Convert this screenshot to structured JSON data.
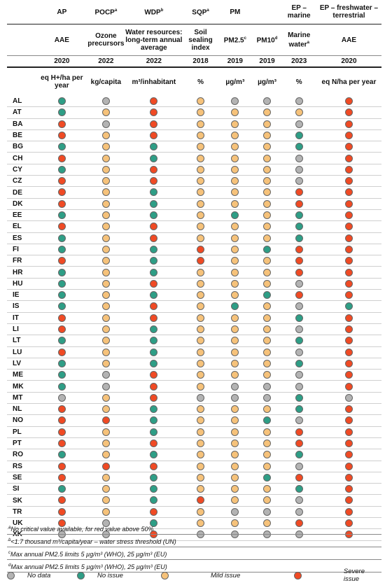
{
  "columns": [
    {
      "id": "ap",
      "group": "AP",
      "group_sup": "",
      "sub": "AAE",
      "sub_sup": "",
      "year": "2020",
      "unit": "eq H+/ha per year"
    },
    {
      "id": "pocp",
      "group": "POCP",
      "group_sup": "a",
      "sub": "Ozone precursors",
      "sub_sup": "",
      "year": "2022",
      "unit": "kg/capita"
    },
    {
      "id": "wdp",
      "group": "WDP",
      "group_sup": "b",
      "sub": "Water resources: long-term annual average",
      "sub_sup": "",
      "year": "2022",
      "unit": "m³/inhabitant"
    },
    {
      "id": "sqp",
      "group": "SQP",
      "group_sup": "a",
      "sub": "Soil sealing index",
      "sub_sup": "",
      "year": "2018",
      "unit": "%"
    },
    {
      "id": "pm25",
      "group": "PM",
      "group_sup": "",
      "sub": "PM2.5",
      "sub_sup": "c",
      "year": "2019",
      "unit": "µg/m³"
    },
    {
      "id": "pm10",
      "group": "",
      "group_sup": "",
      "sub": "PM10",
      "sub_sup": "d",
      "year": "2019",
      "unit": "µg/m³"
    },
    {
      "id": "epm",
      "group": "EP – marine",
      "group_sup": "",
      "sub": "Marine water",
      "sub_sup": "a",
      "year": "2023",
      "unit": "%"
    },
    {
      "id": "ept",
      "group": "EP – freshwater – terrestrial",
      "group_sup": "",
      "sub": "AAE",
      "sub_sup": "",
      "year": "2020",
      "unit": "eq N/ha per year"
    }
  ],
  "colors": {
    "n": "#b3b3b3",
    "g": "#2e9e86",
    "y": "#f6c27a",
    "r": "#f04a24"
  },
  "rows": [
    {
      "code": "AL",
      "s": "gnrynnnr"
    },
    {
      "code": "AT",
      "s": "gyryyyyr"
    },
    {
      "code": "BA",
      "s": "rnryyynr"
    },
    {
      "code": "BE",
      "s": "ryryyygr"
    },
    {
      "code": "BG",
      "s": "gygyyygr"
    },
    {
      "code": "CH",
      "s": "rygyyynr"
    },
    {
      "code": "CY",
      "s": "gyryyynr"
    },
    {
      "code": "CZ",
      "s": "ryryyynr"
    },
    {
      "code": "DE",
      "s": "rygyyyrr"
    },
    {
      "code": "DK",
      "s": "rygyyyrr"
    },
    {
      "code": "EE",
      "s": "gygygygr"
    },
    {
      "code": "EL",
      "s": "ryryyygr"
    },
    {
      "code": "ES",
      "s": "gyryyygr"
    },
    {
      "code": "FI",
      "s": "gygrygrr"
    },
    {
      "code": "FR",
      "s": "rygryyrr"
    },
    {
      "code": "HR",
      "s": "gygyyyrr"
    },
    {
      "code": "HU",
      "s": "gyryyynr"
    },
    {
      "code": "IE",
      "s": "gygyygrr"
    },
    {
      "code": "IS",
      "s": "gyrygyng"
    },
    {
      "code": "IT",
      "s": "ryryyygr"
    },
    {
      "code": "LI",
      "s": "rygyyynr"
    },
    {
      "code": "LT",
      "s": "gygyyygr"
    },
    {
      "code": "LU",
      "s": "rygyyynr"
    },
    {
      "code": "LV",
      "s": "gygyyygr"
    },
    {
      "code": "ME",
      "s": "gnryyynr"
    },
    {
      "code": "MK",
      "s": "gnrynnnr"
    },
    {
      "code": "MT",
      "s": "nyrnnngn"
    },
    {
      "code": "NL",
      "s": "rygyyygr"
    },
    {
      "code": "NO",
      "s": "rrgyygnr"
    },
    {
      "code": "PL",
      "s": "rygyyyrr"
    },
    {
      "code": "PT",
      "s": "ryryyyrr"
    },
    {
      "code": "RO",
      "s": "gygyyygr"
    },
    {
      "code": "RS",
      "s": "rrryyynr"
    },
    {
      "code": "SE",
      "s": "rygyygrr"
    },
    {
      "code": "SI",
      "s": "gygyyygr"
    },
    {
      "code": "SK",
      "s": "rygryynr"
    },
    {
      "code": "TR",
      "s": "ryrynnnr"
    },
    {
      "code": "UK",
      "s": "rngyyyrr"
    },
    {
      "code": "XK",
      "s": "nnrnnnnr"
    }
  ],
  "notes": [
    {
      "sup": "a",
      "text": "No critical value available, for red value above 50%"
    },
    {
      "sup": "b",
      "text": "<1.7 thousand m³/capita/year – water stress threshold (UN)"
    },
    {
      "sup": "c",
      "text": "Max annual PM2.5 limits 5 µg/m³ (WHO), 25 µg/m³ (EU)"
    },
    {
      "sup": "d",
      "text": "Max annual PM2.5 limits 5 µg/m³ (WHO), 25 µg/m³ (EU)"
    }
  ],
  "legend": [
    {
      "key": "n",
      "label": "No data"
    },
    {
      "key": "g",
      "label": "No issue"
    },
    {
      "key": "y",
      "label": "Mild issue"
    },
    {
      "key": "r",
      "label": "Severe issue"
    }
  ]
}
